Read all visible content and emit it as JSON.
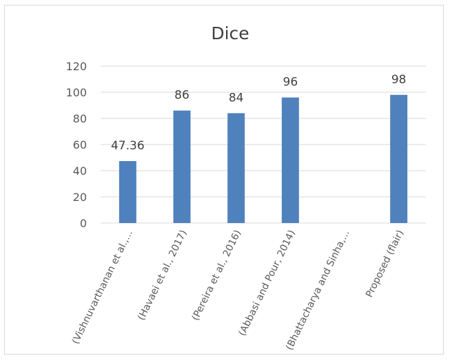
{
  "chart_data": {
    "type": "bar",
    "title": "Dice",
    "xlabel": "",
    "ylabel": "",
    "categories": [
      "(Vishnuvarthanan et al.,...",
      "(Havaei et al., 2017)",
      "(Pereira et al., 2016)",
      "(Abbasi and Pour, 2014)",
      "(Bhattacharya and Sinha,...",
      "Proposed (flair)"
    ],
    "values": [
      47.36,
      86,
      84,
      96,
      null,
      98
    ],
    "data_labels": [
      "47.36",
      "86",
      "84",
      "96",
      "",
      "98"
    ],
    "ylim": [
      0,
      120
    ],
    "yticks": [
      0,
      20,
      40,
      60,
      80,
      100,
      120
    ],
    "grid": true,
    "legend": "none",
    "bar_color": "#4f81bd",
    "grid_color": "#d9d9d9"
  }
}
